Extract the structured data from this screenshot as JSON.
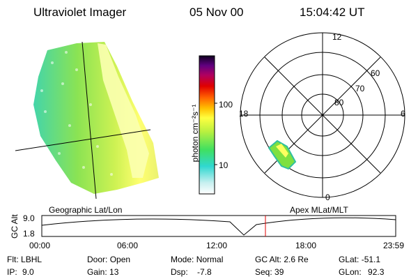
{
  "header": {
    "instrument": "Ultraviolet Imager",
    "date": "05 Nov 00",
    "time": "15:04:42 UT"
  },
  "colorbar": {
    "unit_label": "photon cm⁻²s⁻¹",
    "ticks": [
      "100",
      "10"
    ]
  },
  "polar": {
    "mlt_labels": {
      "top": "12",
      "left": "18",
      "right": "6",
      "bottom": "0"
    },
    "lat_labels": [
      "60",
      "70",
      "80"
    ]
  },
  "panels": {
    "left_caption": "Geographic Lat/Lon",
    "right_caption": "Apex MLat/MLT"
  },
  "altitude_plot": {
    "ylabel": "GC Alt",
    "ytick_top": "9.0",
    "ytick_bottom": "1.8",
    "x_ticks": [
      "00:00",
      "06:00",
      "12:00",
      "18:00",
      "23:59"
    ],
    "marker_color": "#e00000"
  },
  "footer": {
    "flt_label": "Flt:",
    "flt_value": "LBHL",
    "ip_label": "IP:",
    "ip_value": "9.0",
    "door_label": "Door:",
    "door_value": "Open",
    "gain_label": "Gain:",
    "gain_value": "13",
    "mode_label": "Mode:",
    "mode_value": "Normal",
    "dsp_label": "Dsp:",
    "dsp_value": "-7.8",
    "gcalt_label": "GC Alt:",
    "gcalt_value": "2.6 Re",
    "seq_label": "Seq:",
    "seq_value": "39",
    "glat_label": "GLat:",
    "glat_value": "-51.1",
    "glon_label": "GLon:",
    "glon_value": "92.3"
  }
}
